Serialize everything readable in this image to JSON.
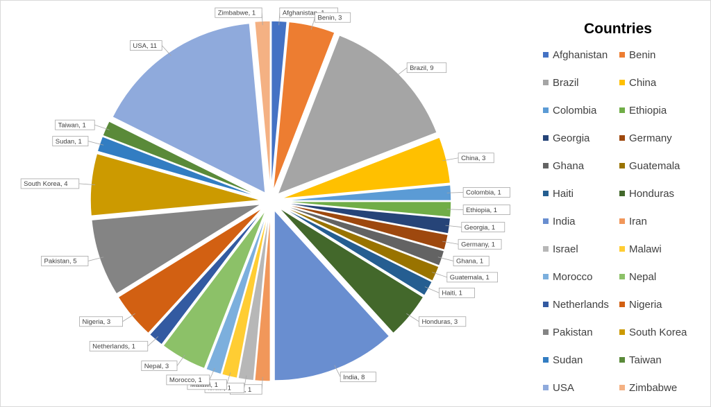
{
  "chart_data": {
    "type": "pie",
    "title": "",
    "legend_title": "Countries",
    "legend_position": "right",
    "exploded": true,
    "slices": [
      {
        "name": "Afghanistan",
        "value": 1,
        "color": "#4472C4"
      },
      {
        "name": "Benin",
        "value": 3,
        "color": "#ED7D31"
      },
      {
        "name": "Brazil",
        "value": 9,
        "color": "#A5A5A5"
      },
      {
        "name": "China",
        "value": 3,
        "color": "#FFC000"
      },
      {
        "name": "Colombia",
        "value": 1,
        "color": "#5B9BD5"
      },
      {
        "name": "Ethiopia",
        "value": 1,
        "color": "#70AD47"
      },
      {
        "name": "Georgia",
        "value": 1,
        "color": "#264478"
      },
      {
        "name": "Germany",
        "value": 1,
        "color": "#9E480E"
      },
      {
        "name": "Ghana",
        "value": 1,
        "color": "#636363"
      },
      {
        "name": "Guatemala",
        "value": 1,
        "color": "#997300"
      },
      {
        "name": "Haiti",
        "value": 1,
        "color": "#255E91"
      },
      {
        "name": "Honduras",
        "value": 3,
        "color": "#43682B"
      },
      {
        "name": "India",
        "value": 8,
        "color": "#698ED0"
      },
      {
        "name": "Iran",
        "value": 1,
        "color": "#F1975A"
      },
      {
        "name": "Israel",
        "value": 1,
        "color": "#B7B7B7"
      },
      {
        "name": "Malawi",
        "value": 1,
        "color": "#FFCD33"
      },
      {
        "name": "Morocco",
        "value": 1,
        "color": "#7CAFDD"
      },
      {
        "name": "Nepal",
        "value": 3,
        "color": "#8CC168"
      },
      {
        "name": "Netherlands",
        "value": 1,
        "color": "#335AA1"
      },
      {
        "name": "Nigeria",
        "value": 3,
        "color": "#D26012"
      },
      {
        "name": "Pakistan",
        "value": 5,
        "color": "#848484"
      },
      {
        "name": "South Korea",
        "value": 4,
        "color": "#CC9A00"
      },
      {
        "name": "Sudan",
        "value": 1,
        "color": "#327DC2"
      },
      {
        "name": "Taiwan",
        "value": 1,
        "color": "#5A8A39"
      },
      {
        "name": "USA",
        "value": 11,
        "color": "#8FAADC"
      },
      {
        "name": "Zimbabwe",
        "value": 1,
        "color": "#F4B183"
      }
    ]
  }
}
